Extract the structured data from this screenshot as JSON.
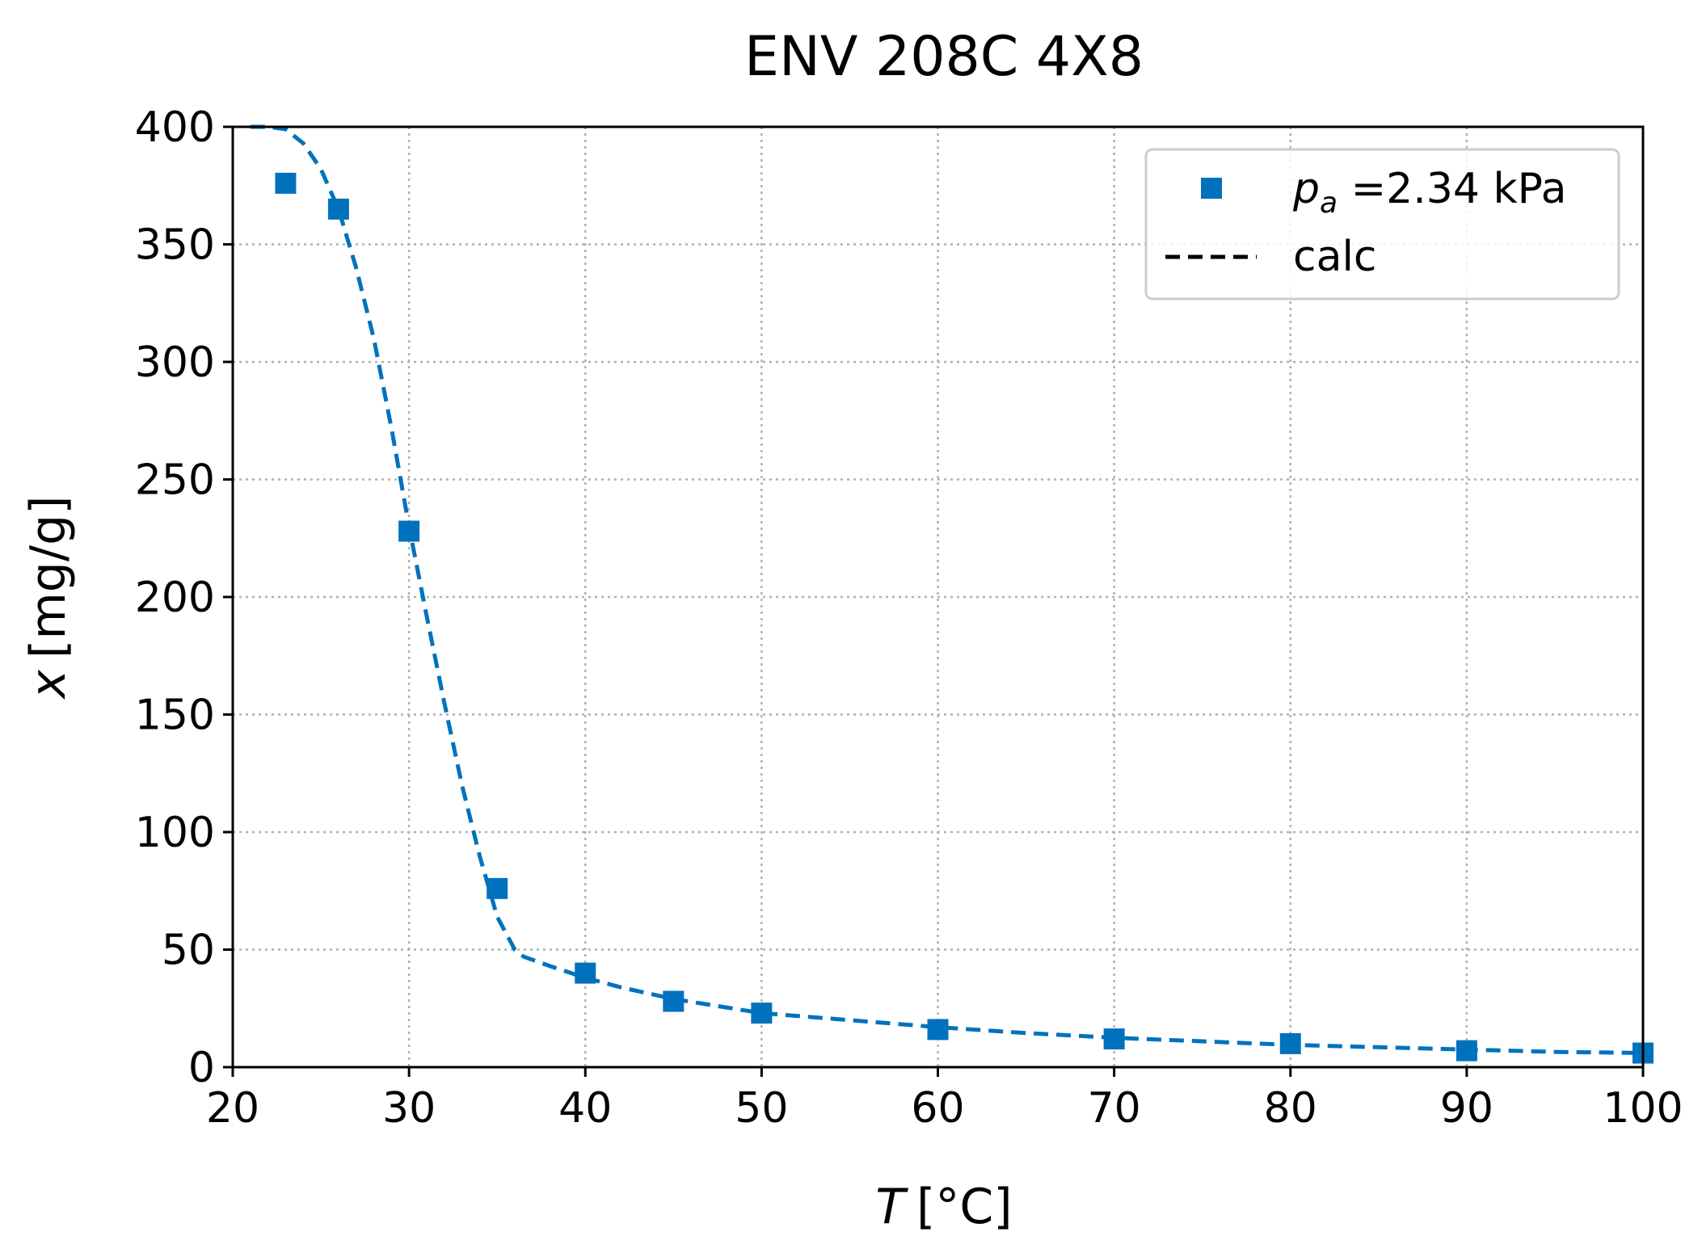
{
  "chart_data": {
    "type": "scatter",
    "title": "ENV 208C 4X8",
    "xlabel_var": "T",
    "xlabel_unit": "[°C]",
    "ylabel_var": "x",
    "ylabel_unit": "[mg/g]",
    "xlim": [
      20,
      100
    ],
    "ylim": [
      0,
      400
    ],
    "xticks": [
      "20",
      "30",
      "40",
      "50",
      "60",
      "70",
      "80",
      "90",
      "100"
    ],
    "yticks": [
      "0",
      "50",
      "100",
      "150",
      "200",
      "250",
      "300",
      "350",
      "400"
    ],
    "grid": true,
    "legend_position": "top-right",
    "series": [
      {
        "name_var": "p",
        "name_sub": "a",
        "name_rest": " =2.34 kPa",
        "type": "scatter",
        "marker": "square",
        "color": "#0072bd",
        "x": [
          23,
          26,
          30,
          35,
          40,
          45,
          50,
          60,
          70,
          80,
          90,
          100
        ],
        "y": [
          376,
          365,
          228,
          76,
          40,
          28,
          23,
          16,
          12,
          10,
          7,
          6
        ]
      },
      {
        "name": "calc",
        "type": "line",
        "style": "dashed",
        "color": "#0072bd",
        "x": [
          21,
          22,
          23,
          24,
          25,
          26,
          27,
          28,
          29,
          30,
          31,
          32,
          33,
          34,
          35,
          36,
          36.5,
          38,
          40,
          42,
          45,
          50,
          55,
          60,
          65,
          70,
          75,
          80,
          85,
          90,
          95,
          100
        ],
        "y": [
          400,
          400,
          399,
          393,
          382,
          365,
          340,
          310,
          272,
          230,
          192,
          155,
          120,
          90,
          64,
          50,
          47,
          43,
          38,
          34,
          29,
          23,
          20,
          17,
          14.5,
          12.5,
          11,
          9.5,
          8.5,
          7.5,
          6.5,
          6
        ]
      }
    ]
  }
}
